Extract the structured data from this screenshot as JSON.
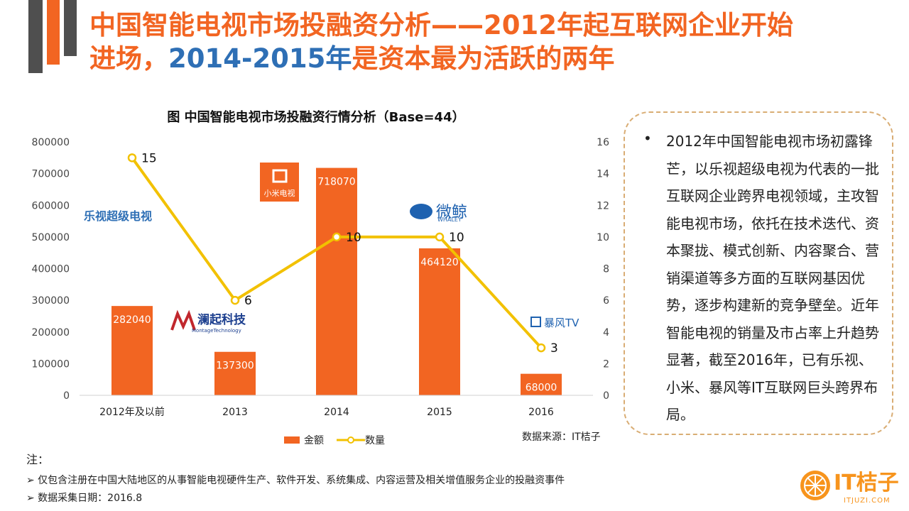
{
  "title": {
    "line1": "中国智能电视市场投融资分析——2012年起互联网企业开始",
    "line2_a": "进场，",
    "line2_highlight": "2014-2015年",
    "line2_b": "是资本最为活跃的两年"
  },
  "chart_title": "图 中国智能电视市场投融资行情分析（Base=44）",
  "chart_data": {
    "type": "bar",
    "title": "图 中国智能电视市场投融资行情分析（Base=44）",
    "categories": [
      "2012年及以前",
      "2013",
      "2014",
      "2015",
      "2016"
    ],
    "series": [
      {
        "name": "金额",
        "type": "bar",
        "axis": "left",
        "values": [
          282040,
          137300,
          718070,
          464120,
          68000
        ],
        "color": "#f26522"
      },
      {
        "name": "数量",
        "type": "line",
        "axis": "right",
        "values": [
          15,
          6,
          10,
          10,
          3
        ],
        "color": "#f2c100"
      }
    ],
    "y_left_ticks": [
      "800000",
      "700000",
      "600000",
      "500000",
      "400000",
      "300000",
      "200000",
      "100000",
      "0"
    ],
    "y_right_ticks": [
      "16",
      "14",
      "12",
      "10",
      "8",
      "6",
      "4",
      "2",
      "0"
    ],
    "ylim_left": [
      0,
      800000
    ],
    "ylim_right": [
      0,
      16
    ],
    "legend_position": "bottom",
    "source": "数据来源：IT桔子",
    "grid": false
  },
  "company_logos": [
    "乐视超级电视",
    "小米电视",
    "澜起科技",
    "MontageTechnology",
    "微鲸",
    "WHALEY",
    "暴风TV"
  ],
  "callout": {
    "bullet": "•",
    "text": "2012年中国智能电视市场初露锋芒，以乐视超级电视为代表的一批互联网企业跨界电视领域，主攻智能电视市场，依托在技术迭代、资本聚拢、模式创新、内容聚合、营销渠道等多方面的互联网基因优势，逐步构建新的竞争壁垒。近年智能电视的销量及市占率上升趋势显著，截至2016年，已有乐视、小米、暴风等IT互联网巨头跨界布局。"
  },
  "notes": {
    "title": "注：",
    "items": [
      "➢ 仅包含注册在中国大陆地区的从事智能电视硬件生产、软件开发、系统集成、内容运营及相关增值服务企业的投融资事件",
      "➢ 数据采集日期：2016.8"
    ]
  },
  "brand": {
    "name": "IT桔子",
    "url": "ITJUZI.COM"
  }
}
